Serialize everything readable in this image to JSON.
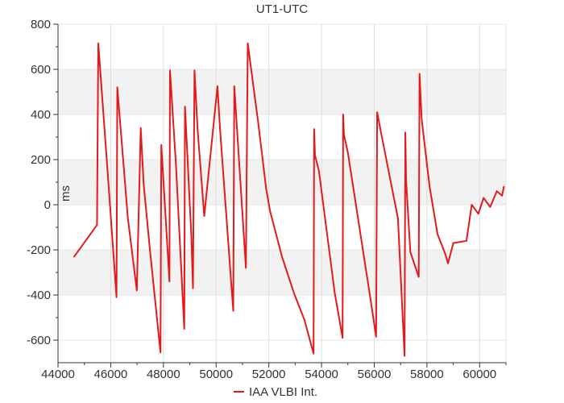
{
  "chart_data": {
    "type": "line",
    "title": "UT1-UTC",
    "xlabel": "",
    "ylabel": "ms",
    "xlim": [
      44000,
      61000
    ],
    "ylim": [
      -700,
      800
    ],
    "x_ticks": [
      44000,
      46000,
      48000,
      50000,
      52000,
      54000,
      56000,
      58000,
      60000
    ],
    "y_ticks": [
      -600,
      -400,
      -200,
      0,
      200,
      400,
      600,
      800
    ],
    "x_tick_labels": [
      "44000",
      "46000",
      "48000",
      "50000",
      "52000",
      "54000",
      "56000",
      "58000",
      "60000"
    ],
    "y_tick_labels": [
      "-600",
      "-400",
      "-200",
      "0",
      "200",
      "400",
      "600",
      "800"
    ],
    "grid": true,
    "legend_position": "bottom-center",
    "series": [
      {
        "name": "IAA VLBI Int.",
        "color": "#e31a1c",
        "x": [
          44610,
          45480,
          45530,
          45900,
          46220,
          46250,
          46650,
          46990,
          47140,
          47250,
          47490,
          47890,
          47920,
          48230,
          48250,
          48480,
          48790,
          48820,
          49060,
          49120,
          49180,
          49300,
          49550,
          50050,
          50150,
          50650,
          50690,
          51130,
          51200,
          51600,
          51900,
          52050,
          52500,
          52950,
          53350,
          53700,
          53720,
          53750,
          53900,
          54500,
          54800,
          54820,
          54850,
          55000,
          55900,
          56070,
          56110,
          56250,
          56900,
          57150,
          57180,
          57210,
          57370,
          57690,
          57720,
          57800,
          58100,
          58400,
          58700,
          58800,
          59000,
          59500,
          59700,
          59950,
          60150,
          60400,
          60650,
          60850,
          60920
        ],
        "y": [
          -230,
          -90,
          715,
          120,
          -410,
          520,
          -60,
          -380,
          340,
          90,
          -200,
          -655,
          265,
          -340,
          595,
          170,
          -550,
          435,
          -140,
          -370,
          595,
          330,
          -50,
          525,
          335,
          -470,
          525,
          -280,
          715,
          360,
          70,
          -30,
          -230,
          -390,
          -510,
          -660,
          335,
          220,
          150,
          -390,
          -590,
          400,
          310,
          230,
          -450,
          -585,
          410,
          325,
          -60,
          -670,
          320,
          110,
          -210,
          -320,
          580,
          380,
          80,
          -130,
          -220,
          -260,
          -170,
          -160,
          0,
          -40,
          30,
          -10,
          60,
          40,
          80
        ]
      }
    ]
  }
}
